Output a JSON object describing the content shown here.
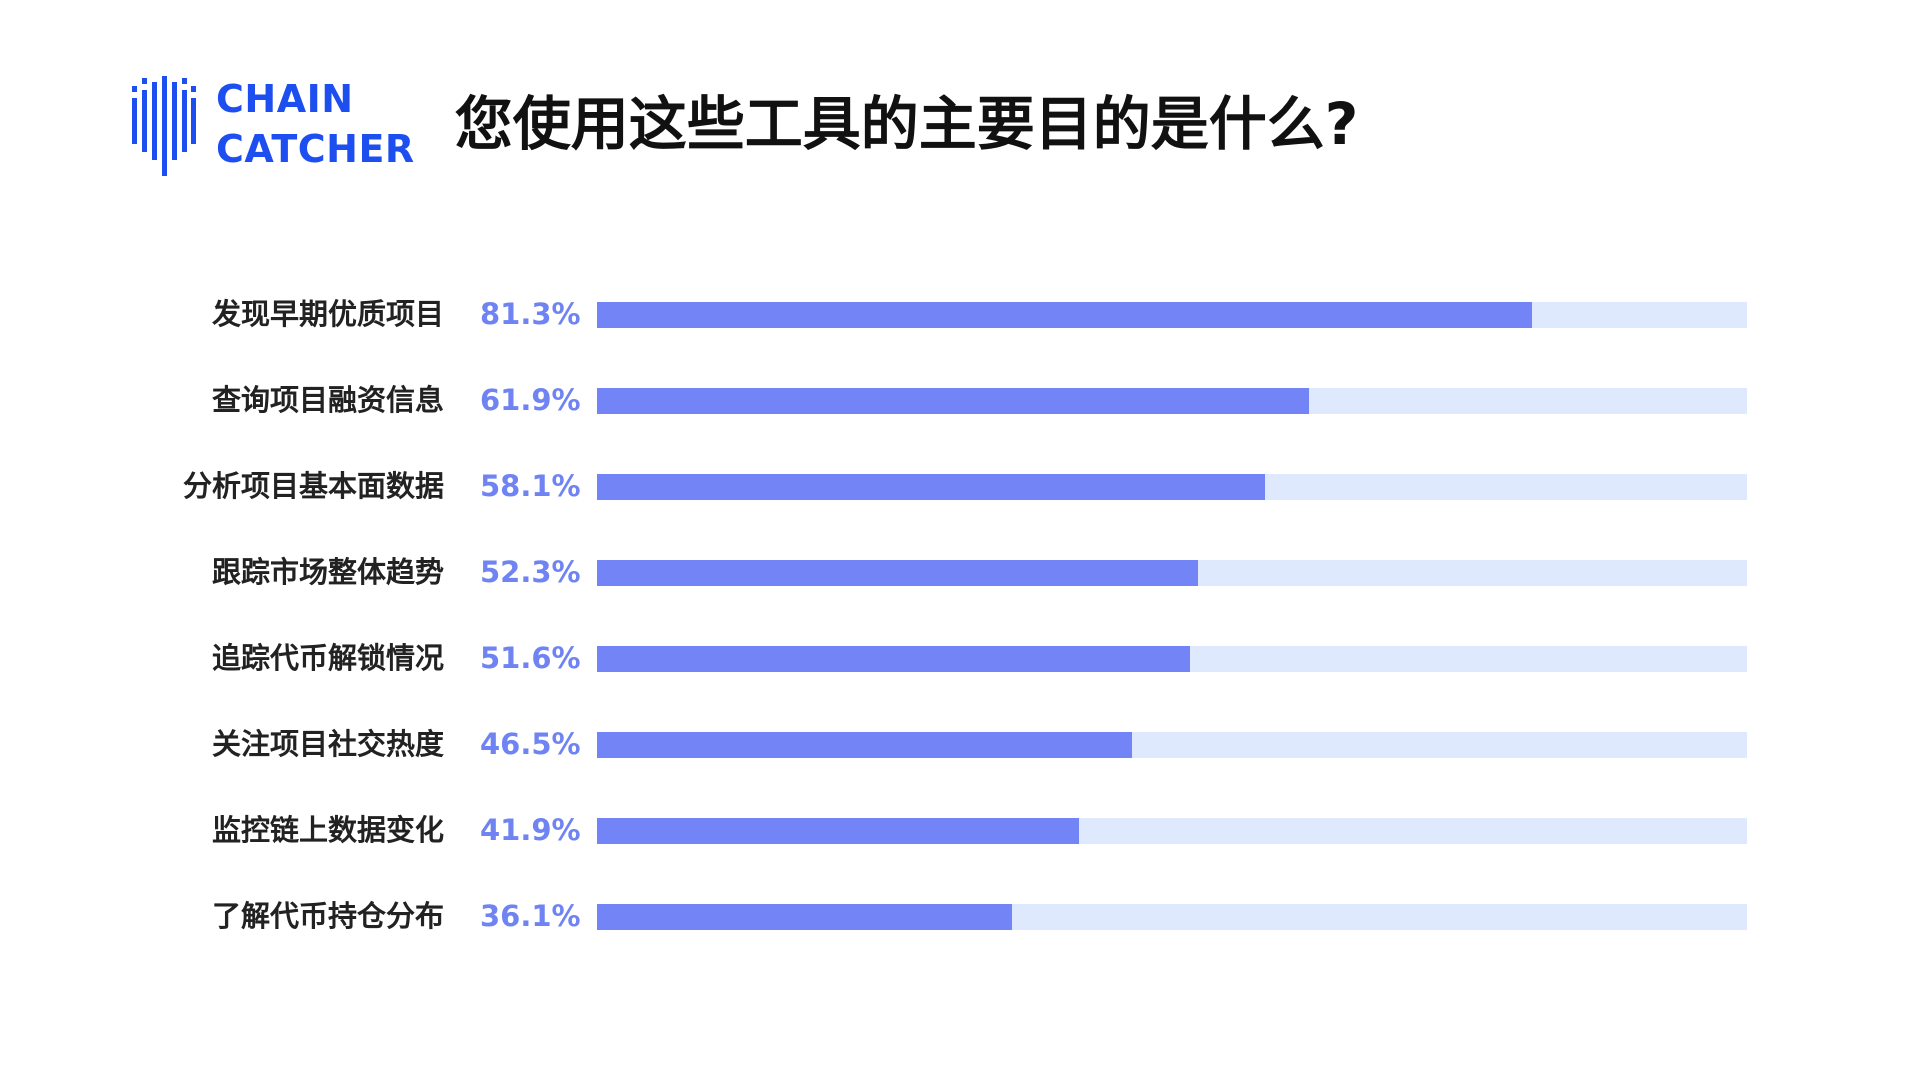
{
  "brand": {
    "line1": "CHAIN",
    "line2": "CATCHER",
    "logo_icon": "chain-catcher-logo-icon",
    "color": "#1d4ef0"
  },
  "chart_data": {
    "type": "bar",
    "orientation": "horizontal",
    "title": "您使用这些工具的主要目的是什么?",
    "categories": [
      "发现早期优质项目",
      "查询项目融资信息",
      "分析项目基本面数据",
      "跟踪市场整体趋势",
      "追踪代币解锁情况",
      "关注项目社交热度",
      "监控链上数据变化",
      "了解代币持仓分布"
    ],
    "values": [
      81.3,
      61.9,
      58.1,
      52.3,
      51.6,
      46.5,
      41.9,
      36.1
    ],
    "value_labels": [
      "81.3%",
      "61.9%",
      "58.1%",
      "52.3%",
      "51.6%",
      "46.5%",
      "41.9%",
      "36.1%"
    ],
    "unit": "%",
    "xlim": [
      0,
      100
    ],
    "grid": false,
    "legend": "none",
    "colors": {
      "bar": "#7385f6",
      "track": "#dfe9fd",
      "value_label": "#6f84f2"
    }
  }
}
